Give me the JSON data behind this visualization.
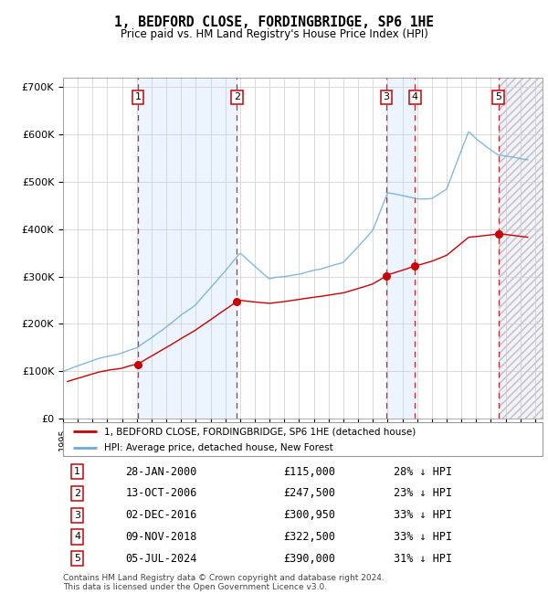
{
  "title": "1, BEDFORD CLOSE, FORDINGBRIDGE, SP6 1HE",
  "subtitle": "Price paid vs. HM Land Registry's House Price Index (HPI)",
  "legend_line1": "1, BEDFORD CLOSE, FORDINGBRIDGE, SP6 1HE (detached house)",
  "legend_line2": "HPI: Average price, detached house, New Forest",
  "footer1": "Contains HM Land Registry data © Crown copyright and database right 2024.",
  "footer2": "This data is licensed under the Open Government Licence v3.0.",
  "transactions": [
    {
      "num": 1,
      "date": "28-JAN-2000",
      "price": 115000,
      "pct": "28% ↓ HPI",
      "year": 2000.07
    },
    {
      "num": 2,
      "date": "13-OCT-2006",
      "price": 247500,
      "pct": "23% ↓ HPI",
      "year": 2006.79
    },
    {
      "num": 3,
      "date": "02-DEC-2016",
      "price": 300950,
      "pct": "33% ↓ HPI",
      "year": 2016.92
    },
    {
      "num": 4,
      "date": "09-NOV-2018",
      "price": 322500,
      "pct": "33% ↓ HPI",
      "year": 2018.86
    },
    {
      "num": 5,
      "date": "05-JUL-2024",
      "price": 390000,
      "pct": "31% ↓ HPI",
      "year": 2024.51
    }
  ],
  "hpi_color": "#6baed6",
  "price_color": "#cc0000",
  "dashed_color": "#cc0000",
  "shaded_color": "#ddeeff",
  "ylim": [
    0,
    720000
  ],
  "xlim_start": 1995.0,
  "xlim_end": 2027.5,
  "yticks": [
    0,
    100000,
    200000,
    300000,
    400000,
    500000,
    600000,
    700000
  ]
}
